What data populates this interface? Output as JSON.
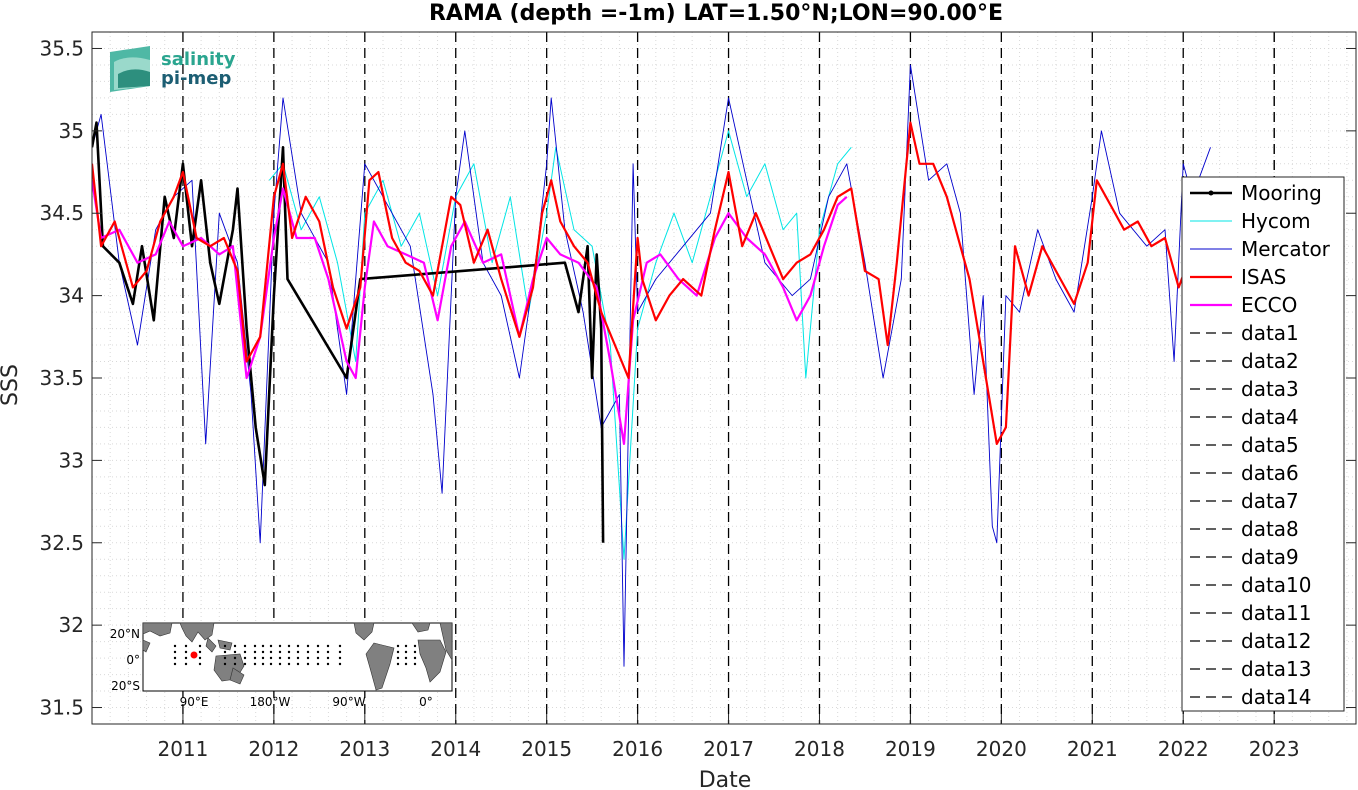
{
  "chart_data": {
    "type": "line",
    "title": "RAMA (depth =-1m) LAT=1.50°N;LON=90.00°E",
    "xlabel": "Date",
    "ylabel": "SSS",
    "xlim": [
      2010.0,
      2023.9
    ],
    "ylim": [
      31.4,
      35.6
    ],
    "x_ticks": [
      2011,
      2012,
      2013,
      2014,
      2015,
      2016,
      2017,
      2018,
      2019,
      2020,
      2021,
      2022,
      2023
    ],
    "y_ticks": [
      31.5,
      32,
      32.5,
      33,
      33.5,
      34,
      34.5,
      35,
      35.5
    ],
    "grid": "minor dotted",
    "legend_position": "right",
    "series": [
      {
        "name": "Mooring",
        "color": "#000000",
        "points": [
          [
            2010.0,
            34.9
          ],
          [
            2010.05,
            35.05
          ],
          [
            2010.12,
            34.3
          ],
          [
            2010.3,
            34.2
          ],
          [
            2010.45,
            33.95
          ],
          [
            2010.55,
            34.3
          ],
          [
            2010.68,
            33.85
          ],
          [
            2010.8,
            34.6
          ],
          [
            2010.9,
            34.35
          ],
          [
            2011.0,
            34.8
          ],
          [
            2011.1,
            34.3
          ],
          [
            2011.2,
            34.7
          ],
          [
            2011.3,
            34.2
          ],
          [
            2011.4,
            33.95
          ],
          [
            2011.55,
            34.4
          ],
          [
            2011.6,
            34.65
          ],
          [
            2011.7,
            33.8
          ],
          [
            2011.8,
            33.2
          ],
          [
            2011.9,
            32.85
          ],
          [
            2012.0,
            34.0
          ],
          [
            2012.1,
            34.9
          ],
          [
            2012.15,
            34.1
          ],
          [
            2012.8,
            33.5
          ],
          [
            2012.95,
            34.1
          ],
          [
            2015.2,
            34.2
          ],
          [
            2015.35,
            33.9
          ],
          [
            2015.45,
            34.3
          ],
          [
            2015.5,
            33.5
          ],
          [
            2015.55,
            34.25
          ],
          [
            2015.6,
            33.8
          ],
          [
            2015.62,
            32.5
          ]
        ]
      },
      {
        "name": "Hycom",
        "color": "#00e5e5",
        "points": [
          [
            2011.95,
            34.7
          ],
          [
            2012.1,
            34.8
          ],
          [
            2012.3,
            34.4
          ],
          [
            2012.5,
            34.6
          ],
          [
            2012.7,
            34.2
          ],
          [
            2012.9,
            33.6
          ],
          [
            2013.0,
            34.5
          ],
          [
            2013.2,
            34.7
          ],
          [
            2013.4,
            34.3
          ],
          [
            2013.6,
            34.5
          ],
          [
            2013.8,
            34.0
          ],
          [
            2014.0,
            34.6
          ],
          [
            2014.2,
            34.8
          ],
          [
            2014.4,
            34.2
          ],
          [
            2014.6,
            34.6
          ],
          [
            2014.8,
            33.9
          ],
          [
            2015.0,
            34.5
          ],
          [
            2015.1,
            34.9
          ],
          [
            2015.3,
            34.4
          ],
          [
            2015.5,
            34.3
          ],
          [
            2015.7,
            33.7
          ],
          [
            2015.85,
            32.4
          ],
          [
            2016.0,
            33.8
          ],
          [
            2016.2,
            34.2
          ],
          [
            2016.4,
            34.5
          ],
          [
            2016.6,
            34.2
          ],
          [
            2016.8,
            34.6
          ],
          [
            2017.0,
            35.0
          ],
          [
            2017.2,
            34.6
          ],
          [
            2017.4,
            34.8
          ],
          [
            2017.6,
            34.4
          ],
          [
            2017.75,
            34.5
          ],
          [
            2017.85,
            33.5
          ],
          [
            2018.0,
            34.4
          ],
          [
            2018.2,
            34.8
          ],
          [
            2018.35,
            34.9
          ]
        ]
      },
      {
        "name": "Mercator",
        "color": "#0000cc",
        "points": [
          [
            2010.0,
            34.9
          ],
          [
            2010.1,
            35.1
          ],
          [
            2010.3,
            34.2
          ],
          [
            2010.5,
            33.7
          ],
          [
            2010.7,
            34.4
          ],
          [
            2010.9,
            34.6
          ],
          [
            2011.1,
            34.7
          ],
          [
            2011.25,
            33.1
          ],
          [
            2011.4,
            34.5
          ],
          [
            2011.6,
            34.2
          ],
          [
            2011.75,
            33.4
          ],
          [
            2011.85,
            32.5
          ],
          [
            2012.0,
            34.5
          ],
          [
            2012.1,
            35.2
          ],
          [
            2012.3,
            34.5
          ],
          [
            2012.6,
            34.2
          ],
          [
            2012.8,
            33.4
          ],
          [
            2013.0,
            34.8
          ],
          [
            2013.2,
            34.6
          ],
          [
            2013.5,
            34.3
          ],
          [
            2013.75,
            33.4
          ],
          [
            2013.85,
            32.8
          ],
          [
            2014.0,
            34.6
          ],
          [
            2014.1,
            35.0
          ],
          [
            2014.3,
            34.2
          ],
          [
            2014.5,
            34.0
          ],
          [
            2014.7,
            33.5
          ],
          [
            2014.9,
            34.3
          ],
          [
            2015.0,
            34.8
          ],
          [
            2015.05,
            35.2
          ],
          [
            2015.2,
            34.4
          ],
          [
            2015.4,
            33.9
          ],
          [
            2015.6,
            33.2
          ],
          [
            2015.8,
            33.4
          ],
          [
            2015.85,
            31.75
          ],
          [
            2015.95,
            34.8
          ],
          [
            2016.0,
            33.9
          ],
          [
            2016.2,
            34.1
          ],
          [
            2016.5,
            34.3
          ],
          [
            2016.8,
            34.5
          ],
          [
            2017.0,
            35.2
          ],
          [
            2017.2,
            34.7
          ],
          [
            2017.4,
            34.2
          ],
          [
            2017.7,
            34.0
          ],
          [
            2017.9,
            34.1
          ],
          [
            2018.1,
            34.6
          ],
          [
            2018.3,
            34.8
          ],
          [
            2018.5,
            34.2
          ],
          [
            2018.7,
            33.5
          ],
          [
            2018.9,
            34.1
          ],
          [
            2019.0,
            35.4
          ],
          [
            2019.2,
            34.7
          ],
          [
            2019.4,
            34.8
          ],
          [
            2019.55,
            34.5
          ],
          [
            2019.7,
            33.4
          ],
          [
            2019.8,
            34.0
          ],
          [
            2019.9,
            32.6
          ],
          [
            2019.95,
            32.5
          ],
          [
            2020.05,
            34.0
          ],
          [
            2020.2,
            33.9
          ],
          [
            2020.4,
            34.4
          ],
          [
            2020.6,
            34.1
          ],
          [
            2020.8,
            33.9
          ],
          [
            2021.0,
            34.6
          ],
          [
            2021.1,
            35.0
          ],
          [
            2021.3,
            34.5
          ],
          [
            2021.6,
            34.3
          ],
          [
            2021.8,
            34.4
          ],
          [
            2021.9,
            33.6
          ],
          [
            2022.0,
            34.8
          ],
          [
            2022.1,
            34.6
          ],
          [
            2022.3,
            34.9
          ]
        ]
      },
      {
        "name": "ISAS",
        "color": "#ff0000",
        "points": [
          [
            2010.0,
            34.8
          ],
          [
            2010.1,
            34.3
          ],
          [
            2010.25,
            34.45
          ],
          [
            2010.45,
            34.05
          ],
          [
            2010.6,
            34.15
          ],
          [
            2010.75,
            34.45
          ],
          [
            2010.9,
            34.6
          ],
          [
            2011.0,
            34.75
          ],
          [
            2011.15,
            34.35
          ],
          [
            2011.3,
            34.3
          ],
          [
            2011.45,
            34.35
          ],
          [
            2011.6,
            34.15
          ],
          [
            2011.7,
            33.6
          ],
          [
            2011.85,
            33.75
          ],
          [
            2012.0,
            34.6
          ],
          [
            2012.1,
            34.8
          ],
          [
            2012.2,
            34.35
          ],
          [
            2012.35,
            34.6
          ],
          [
            2012.5,
            34.45
          ],
          [
            2012.65,
            34.05
          ],
          [
            2012.8,
            33.8
          ],
          [
            2012.95,
            34.05
          ],
          [
            2013.05,
            34.7
          ],
          [
            2013.15,
            34.75
          ],
          [
            2013.3,
            34.35
          ],
          [
            2013.45,
            34.2
          ],
          [
            2013.6,
            34.15
          ],
          [
            2013.75,
            34.0
          ],
          [
            2013.95,
            34.6
          ],
          [
            2014.05,
            34.55
          ],
          [
            2014.2,
            34.2
          ],
          [
            2014.35,
            34.4
          ],
          [
            2014.5,
            34.1
          ],
          [
            2014.7,
            33.75
          ],
          [
            2014.85,
            34.05
          ],
          [
            2014.95,
            34.5
          ],
          [
            2015.05,
            34.7
          ],
          [
            2015.15,
            34.45
          ],
          [
            2015.3,
            34.3
          ],
          [
            2015.45,
            34.2
          ],
          [
            2015.6,
            33.9
          ],
          [
            2015.75,
            33.7
          ],
          [
            2015.9,
            33.5
          ],
          [
            2016.0,
            34.35
          ],
          [
            2016.05,
            34.1
          ],
          [
            2016.2,
            33.85
          ],
          [
            2016.35,
            34.0
          ],
          [
            2016.5,
            34.1
          ],
          [
            2016.7,
            34.0
          ],
          [
            2016.85,
            34.4
          ],
          [
            2017.0,
            34.75
          ],
          [
            2017.15,
            34.3
          ],
          [
            2017.3,
            34.5
          ],
          [
            2017.45,
            34.3
          ],
          [
            2017.6,
            34.1
          ],
          [
            2017.75,
            34.2
          ],
          [
            2017.9,
            34.25
          ],
          [
            2018.05,
            34.4
          ],
          [
            2018.2,
            34.6
          ],
          [
            2018.35,
            34.65
          ],
          [
            2018.5,
            34.15
          ],
          [
            2018.65,
            34.1
          ],
          [
            2018.75,
            33.7
          ],
          [
            2018.85,
            34.2
          ],
          [
            2019.0,
            35.05
          ],
          [
            2019.1,
            34.8
          ],
          [
            2019.25,
            34.8
          ],
          [
            2019.4,
            34.6
          ],
          [
            2019.55,
            34.3
          ],
          [
            2019.65,
            34.1
          ],
          [
            2019.8,
            33.6
          ],
          [
            2019.95,
            33.1
          ],
          [
            2020.05,
            33.2
          ],
          [
            2020.15,
            34.3
          ],
          [
            2020.3,
            34.0
          ],
          [
            2020.45,
            34.3
          ],
          [
            2020.6,
            34.15
          ],
          [
            2020.8,
            33.95
          ],
          [
            2020.95,
            34.2
          ],
          [
            2021.05,
            34.7
          ],
          [
            2021.2,
            34.55
          ],
          [
            2021.35,
            34.4
          ],
          [
            2021.5,
            34.45
          ],
          [
            2021.65,
            34.3
          ],
          [
            2021.8,
            34.35
          ],
          [
            2021.95,
            34.05
          ],
          [
            2022.05,
            34.2
          ],
          [
            2022.15,
            34.38
          ]
        ]
      },
      {
        "name": "ECCO",
        "color": "#ff00ff",
        "points": [
          [
            2010.0,
            34.7
          ],
          [
            2010.1,
            34.35
          ],
          [
            2010.3,
            34.4
          ],
          [
            2010.5,
            34.2
          ],
          [
            2010.7,
            34.25
          ],
          [
            2010.85,
            34.45
          ],
          [
            2011.0,
            34.3
          ],
          [
            2011.2,
            34.35
          ],
          [
            2011.4,
            34.25
          ],
          [
            2011.55,
            34.3
          ],
          [
            2011.7,
            33.5
          ],
          [
            2011.85,
            33.75
          ],
          [
            2012.0,
            34.35
          ],
          [
            2012.1,
            34.65
          ],
          [
            2012.25,
            34.35
          ],
          [
            2012.45,
            34.35
          ],
          [
            2012.6,
            34.1
          ],
          [
            2012.8,
            33.6
          ],
          [
            2012.9,
            33.5
          ],
          [
            2013.0,
            34.05
          ],
          [
            2013.1,
            34.45
          ],
          [
            2013.25,
            34.3
          ],
          [
            2013.45,
            34.25
          ],
          [
            2013.65,
            34.2
          ],
          [
            2013.8,
            33.85
          ],
          [
            2013.95,
            34.3
          ],
          [
            2014.1,
            34.45
          ],
          [
            2014.3,
            34.2
          ],
          [
            2014.5,
            34.25
          ],
          [
            2014.7,
            33.75
          ],
          [
            2014.85,
            34.1
          ],
          [
            2015.0,
            34.35
          ],
          [
            2015.15,
            34.25
          ],
          [
            2015.35,
            34.2
          ],
          [
            2015.55,
            34.05
          ],
          [
            2015.7,
            33.6
          ],
          [
            2015.85,
            33.1
          ],
          [
            2015.95,
            33.85
          ],
          [
            2016.1,
            34.2
          ],
          [
            2016.25,
            34.25
          ],
          [
            2016.45,
            34.1
          ],
          [
            2016.65,
            34.0
          ],
          [
            2016.85,
            34.35
          ],
          [
            2017.0,
            34.5
          ],
          [
            2017.2,
            34.35
          ],
          [
            2017.4,
            34.25
          ],
          [
            2017.6,
            34.05
          ],
          [
            2017.75,
            33.85
          ],
          [
            2017.9,
            34.0
          ],
          [
            2018.05,
            34.3
          ],
          [
            2018.2,
            34.55
          ],
          [
            2018.3,
            34.6
          ]
        ]
      },
      {
        "name": "data1",
        "x": 2011.0
      },
      {
        "name": "data2",
        "x": 2012.0
      },
      {
        "name": "data3",
        "x": 2013.0
      },
      {
        "name": "data4",
        "x": 2014.0
      },
      {
        "name": "data5",
        "x": 2015.0
      },
      {
        "name": "data6",
        "x": 2016.0
      },
      {
        "name": "data7",
        "x": 2017.0
      },
      {
        "name": "data8",
        "x": 2018.0
      },
      {
        "name": "data9",
        "x": 2019.0
      },
      {
        "name": "data10",
        "x": 2020.0
      },
      {
        "name": "data11",
        "x": 2021.0
      },
      {
        "name": "data12",
        "x": 2022.0
      },
      {
        "name": "data13",
        "x": 2023.0
      },
      {
        "name": "data14",
        "x": 2023.0
      }
    ]
  },
  "logo": {
    "line1": "salinity",
    "line2": "pi-mep"
  },
  "inset_map": {
    "lat_labels": [
      "20°N",
      "0°",
      "20°S"
    ],
    "lon_labels": [
      "90°E",
      "180°W",
      "90°W",
      "0°"
    ],
    "ocean_color": "#ffffff",
    "land_color": "#808080",
    "marker_color": "#ff0000"
  }
}
